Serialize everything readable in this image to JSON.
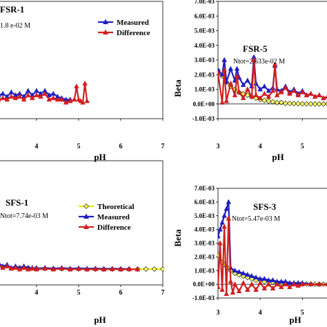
{
  "chart_data": [
    {
      "type": "line",
      "panel_label": "FSR-1",
      "annotation": "1.8 e-02 M",
      "xlabel": "pH",
      "ylabel": "",
      "xticks": [
        "4",
        "5",
        "6",
        "7"
      ],
      "xlim": [
        3.1,
        7
      ],
      "ylim": [
        -0.001,
        0.007
      ],
      "yticks": [],
      "grid": false,
      "legend": [
        {
          "name": "Measured",
          "color": "#1f1fbf",
          "marker": "triangle"
        },
        {
          "name": "Difference",
          "color": "#d11f1f",
          "marker": "triangle"
        }
      ],
      "series": [
        {
          "name": "Measured",
          "color": "#1f1fbf",
          "marker": "triangle",
          "x": [
            3.1,
            3.2,
            3.3,
            3.4,
            3.5,
            3.6,
            3.7,
            3.8,
            3.9,
            4.0,
            4.1,
            4.2,
            4.3,
            4.4,
            4.5,
            4.6,
            4.7,
            4.8
          ],
          "y": [
            0.0006,
            0.0007,
            0.0005,
            0.0008,
            0.0006,
            0.0007,
            0.0005,
            0.0009,
            0.0006,
            0.0009,
            0.0007,
            0.0009,
            0.0006,
            0.0007,
            0.0005,
            0.0004,
            0.0003,
            0.0003
          ]
        },
        {
          "name": "Difference",
          "color": "#d11f1f",
          "marker": "triangle",
          "x": [
            3.1,
            3.2,
            3.3,
            3.4,
            3.5,
            3.6,
            3.7,
            3.8,
            3.9,
            4.0,
            4.1,
            4.2,
            4.3,
            4.4,
            4.5,
            4.6,
            4.7,
            4.8,
            4.9,
            4.95,
            5.0,
            5.05,
            5.1,
            5.15,
            5.2
          ],
          "y": [
            0.0003,
            0.0004,
            0.0003,
            0.0005,
            0.0004,
            0.0005,
            0.0003,
            0.0006,
            0.0004,
            0.0006,
            0.0005,
            0.0007,
            0.0003,
            0.0004,
            0.0003,
            0.0003,
            0.0001,
            0.0002,
            0.0003,
            0.0012,
            0.0003,
            0.0002,
            0.0001,
            0.0014,
            0.0002
          ]
        }
      ]
    },
    {
      "type": "line",
      "panel_label": "FSR-5",
      "annotation": "Ntot=2.633e-02 M",
      "xlabel": "pH",
      "ylabel": "Beta",
      "xticks": [
        "3",
        "4",
        "5"
      ],
      "xlim": [
        3,
        5.6
      ],
      "ylim": [
        -0.001,
        0.007
      ],
      "yticks": [
        "-1.0E-03",
        "0.0E+00",
        "1.0E-03",
        "2.0E-03",
        "3.0E-03",
        "4.0E-03",
        "5.0E-03",
        "6.0E-03",
        "7.0E-03"
      ],
      "grid": false,
      "legend": [],
      "series": [
        {
          "name": "Theoretical",
          "color": "#e6e600",
          "marker": "diamond",
          "x": [
            3.0,
            3.1,
            3.2,
            3.3,
            3.4,
            3.5,
            3.6,
            3.7,
            3.8,
            3.9,
            4.0,
            4.1,
            4.2,
            4.3,
            4.4,
            4.5,
            4.6,
            4.7,
            4.8,
            4.9,
            5.0,
            5.1,
            5.2,
            5.3,
            5.4,
            5.5,
            5.6
          ],
          "y": [
            0.0023,
            0.0019,
            0.0015,
            0.0012,
            0.001,
            0.0008,
            0.0007,
            0.0006,
            0.0005,
            0.0004,
            0.0003,
            0.00025,
            0.0002,
            0.00015,
            0.0001,
            0.0001,
            5e-05,
            4e-05,
            3e-05,
            2e-05,
            1e-05,
            1e-05,
            1e-05,
            0.0,
            0.0,
            0.0,
            0.0
          ]
        },
        {
          "name": "Measured",
          "color": "#1f1fbf",
          "marker": "triangle",
          "x": [
            3.0,
            3.1,
            3.15,
            3.2,
            3.3,
            3.4,
            3.45,
            3.5,
            3.6,
            3.7,
            3.8,
            3.85,
            3.9,
            4.0,
            4.1,
            4.2,
            4.3,
            4.35,
            4.4,
            4.5,
            4.6,
            4.7,
            4.8,
            4.9,
            5.0,
            5.1,
            5.2,
            5.3,
            5.4,
            5.5,
            5.6
          ],
          "y": [
            0.0023,
            0.002,
            0.003,
            0.0015,
            0.0024,
            0.0016,
            0.0024,
            0.0018,
            0.0013,
            0.0016,
            0.0012,
            0.0032,
            0.0014,
            0.001,
            0.0012,
            0.0009,
            0.0011,
            0.0026,
            0.001,
            0.0009,
            0.0012,
            0.0008,
            0.001,
            0.0007,
            0.0009,
            0.0006,
            0.0007,
            0.0005,
            0.0006,
            0.0004,
            0.0005
          ]
        },
        {
          "name": "Difference",
          "color": "#d11f1f",
          "marker": "triangle",
          "x": [
            3.0,
            3.1,
            3.15,
            3.2,
            3.3,
            3.4,
            3.45,
            3.5,
            3.6,
            3.7,
            3.8,
            3.85,
            3.9,
            4.0,
            4.1,
            4.2,
            4.3,
            4.35,
            4.4,
            4.5,
            4.6,
            4.7,
            4.8,
            4.9,
            5.0,
            5.1,
            5.2,
            5.3,
            5.4,
            5.5,
            5.6
          ],
          "y": [
            0.0021,
            0.0001,
            0.0023,
            0.0002,
            0.0014,
            0.0006,
            0.0019,
            0.0008,
            0.0004,
            0.001,
            0.0005,
            0.003,
            0.0006,
            0.0004,
            0.0007,
            0.0005,
            0.0009,
            0.0027,
            0.0006,
            0.0008,
            0.0011,
            0.0007,
            0.0009,
            0.0006,
            0.0008,
            0.0006,
            0.0007,
            0.0005,
            0.0006,
            0.0004,
            0.0005
          ]
        }
      ]
    },
    {
      "type": "line",
      "panel_label": "SFS-1",
      "annotation": "Ntot=7.74e-03 M",
      "xlabel": "pH",
      "ylabel": "",
      "xticks": [
        "4",
        "5",
        "6",
        "7"
      ],
      "xlim": [
        3.1,
        7
      ],
      "ylim": [
        -0.001,
        0.007
      ],
      "yticks": [],
      "grid": false,
      "legend": [
        {
          "name": "Theoretical",
          "color": "#e6e600",
          "marker": "diamond"
        },
        {
          "name": "Measured",
          "color": "#1f1fbf",
          "marker": "triangle"
        },
        {
          "name": "Difference",
          "color": "#d11f1f",
          "marker": "triangle"
        }
      ],
      "series": [
        {
          "name": "Theoretical",
          "color": "#e6e600",
          "marker": "diamond",
          "x": [
            3.6,
            3.8,
            4.0,
            4.2,
            4.4,
            4.6,
            4.8,
            5.0,
            5.2,
            5.4,
            5.6,
            5.8,
            6.0,
            6.2,
            6.4,
            6.6,
            6.8,
            7.0
          ],
          "y": [
            0.0001,
            0.0001,
            8e-05,
            6e-05,
            5e-05,
            4e-05,
            3e-05,
            3e-05,
            2e-05,
            2e-05,
            2e-05,
            2e-05,
            2e-05,
            2e-05,
            2e-05,
            2e-05,
            2e-05,
            2e-05
          ]
        },
        {
          "name": "Measured",
          "color": "#1f1fbf",
          "marker": "triangle",
          "x": [
            3.1,
            3.2,
            3.3,
            3.4,
            3.5,
            3.6,
            3.7,
            3.8,
            3.9,
            4.0,
            4.2,
            4.4,
            4.6,
            4.8,
            5.0,
            5.2,
            5.4,
            5.6,
            5.8,
            6.0,
            6.2
          ],
          "y": [
            0.0004,
            0.0002,
            0.0003,
            0.0001,
            0.0002,
            0.0001,
            0.0002,
            0.0001,
            0.0001,
            5e-05,
            0.0001,
            5e-05,
            0.0001,
            5e-05,
            8e-05,
            5e-05,
            6e-05,
            4e-05,
            5e-05,
            4e-05,
            3e-05
          ]
        },
        {
          "name": "Difference",
          "color": "#d11f1f",
          "marker": "triangle",
          "x": [
            3.1,
            3.2,
            3.3,
            3.4,
            3.5,
            3.6,
            3.7,
            3.8,
            3.9,
            4.0,
            4.2,
            4.4,
            4.6,
            4.8,
            5.0,
            5.2,
            5.4,
            5.6,
            5.8,
            6.0,
            6.2,
            6.4
          ],
          "y": [
            0.0003,
            0.0001,
            0.0002,
            5e-05,
            0.0001,
            0.0,
            0.0001,
            0.0,
            5e-05,
            0.0,
            5e-05,
            0.0,
            5e-05,
            0.0,
            3e-05,
            0.0,
            2e-05,
            0.0,
            2e-05,
            0.0,
            1e-05,
            0.0
          ]
        }
      ]
    },
    {
      "type": "line",
      "panel_label": "SFS-3",
      "annotation": "Ntot=5.47e-03 M",
      "xlabel": "pH",
      "ylabel": "Beta",
      "xticks": [
        "3",
        "4",
        "5"
      ],
      "xlim": [
        3,
        5.6
      ],
      "ylim": [
        -0.001,
        0.007
      ],
      "yticks": [
        "-1.0E-03",
        "0.0E+00",
        "1.0E-03",
        "2.0E-03",
        "3.0E-03",
        "4.0E-03",
        "5.0E-03",
        "6.0E-03",
        "7.0E-03"
      ],
      "grid": false,
      "legend": [],
      "series": [
        {
          "name": "Theoretical",
          "color": "#e6e600",
          "marker": "diamond",
          "x": [
            3.0,
            3.1,
            3.2,
            3.3,
            3.4,
            3.5,
            3.6,
            3.7,
            3.8,
            3.9,
            4.0,
            4.1,
            4.2,
            4.3,
            4.4,
            4.5,
            4.6,
            4.7,
            4.8,
            4.9,
            5.0,
            5.1,
            5.2,
            5.3,
            5.4,
            5.5,
            5.6
          ],
          "y": [
            0.0021,
            0.0016,
            0.0013,
            0.001,
            0.0008,
            0.0007,
            0.0006,
            0.0005,
            0.0004,
            0.0003,
            0.0003,
            0.0002,
            0.0002,
            0.00015,
            0.0001,
            0.0001,
            8e-05,
            6e-05,
            5e-05,
            4e-05,
            3e-05,
            2e-05,
            2e-05,
            1e-05,
            1e-05,
            1e-05,
            0.0
          ]
        },
        {
          "name": "Measured",
          "color": "#1f1fbf",
          "marker": "triangle",
          "x": [
            3.0,
            3.05,
            3.1,
            3.15,
            3.2,
            3.25,
            3.3,
            3.4,
            3.5,
            3.6,
            3.7,
            3.8,
            3.9,
            4.0,
            4.1,
            4.2,
            4.3,
            4.4,
            4.5,
            4.6,
            4.7,
            4.8,
            4.9,
            5.0,
            5.2,
            5.4,
            5.6
          ],
          "y": [
            0.0035,
            0.004,
            0.0045,
            0.005,
            0.0055,
            0.006,
            0.0012,
            0.001,
            0.0009,
            0.0008,
            0.0007,
            0.0006,
            0.0005,
            0.0004,
            0.0004,
            0.0003,
            0.0003,
            0.0002,
            0.0002,
            0.0002,
            0.0001,
            0.0001,
            0.0001,
            0.0001,
            0.0,
            0.0,
            0.0
          ]
        },
        {
          "name": "Difference",
          "color": "#d11f1f",
          "marker": "triangle",
          "x": [
            3.0,
            3.05,
            3.1,
            3.15,
            3.2,
            3.25,
            3.3,
            3.35,
            3.4,
            3.5,
            3.6,
            3.7,
            3.8,
            3.9,
            4.0,
            4.1,
            4.2,
            4.3,
            4.4,
            4.5,
            4.6,
            4.7,
            4.8,
            4.9,
            5.0,
            5.2,
            5.4,
            5.6
          ],
          "y": [
            -0.0002,
            0.003,
            -0.0004,
            0.0042,
            -0.0007,
            0.0048,
            0.0002,
            -0.0006,
            0.0,
            -0.0005,
            0.0001,
            -0.0004,
            0.0,
            -0.0004,
            0.0001,
            -0.0003,
            0.0,
            -0.0003,
            0.0,
            -0.0002,
            0.0,
            -0.0002,
            0.0,
            -0.0001,
            0.0,
            0.0,
            0.0,
            0.0
          ]
        }
      ]
    }
  ]
}
